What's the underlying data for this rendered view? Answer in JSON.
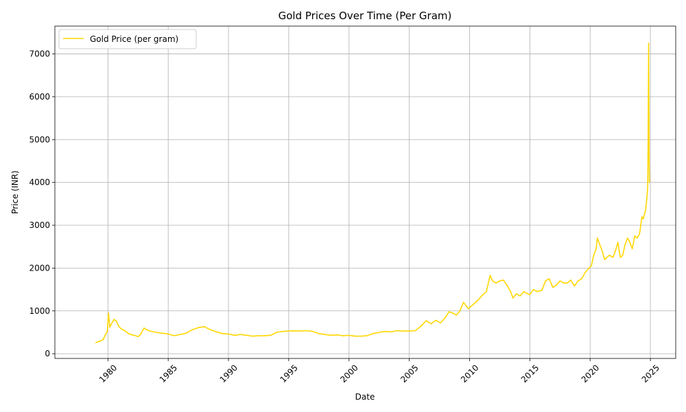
{
  "chart_data": {
    "type": "line",
    "title": "Gold Prices Over Time (Per Gram)",
    "xlabel": "Date",
    "ylabel": "Price (INR)",
    "xlim": [
      1975.6,
      2027.1
    ],
    "ylim": [
      -110,
      7650
    ],
    "x_ticks": [
      1980,
      1985,
      1990,
      1995,
      2000,
      2005,
      2010,
      2015,
      2020,
      2025
    ],
    "y_ticks": [
      0,
      1000,
      2000,
      3000,
      4000,
      5000,
      6000,
      7000
    ],
    "grid": true,
    "legend_position": "top-left",
    "series": [
      {
        "name": "Gold Price (per gram)",
        "color": "#FFD700",
        "x": [
          1979.0,
          1979.3,
          1979.6,
          1979.8,
          1979.95,
          1980.05,
          1980.15,
          1980.3,
          1980.5,
          1980.7,
          1980.9,
          1981.1,
          1981.4,
          1981.7,
          1982.0,
          1982.3,
          1982.5,
          1982.7,
          1983.0,
          1983.2,
          1983.5,
          1984.0,
          1984.5,
          1985.0,
          1985.5,
          1986.0,
          1986.5,
          1987.0,
          1987.5,
          1988.0,
          1988.5,
          1989.0,
          1989.5,
          1990.0,
          1990.5,
          1991.0,
          1991.5,
          1992.0,
          1992.5,
          1993.0,
          1993.5,
          1994.0,
          1994.5,
          1995.0,
          1995.5,
          1996.0,
          1996.5,
          1997.0,
          1997.5,
          1998.0,
          1998.5,
          1999.0,
          1999.5,
          2000.0,
          2000.5,
          2001.0,
          2001.5,
          2002.0,
          2002.5,
          2003.0,
          2003.5,
          2004.0,
          2004.5,
          2005.0,
          2005.5,
          2006.0,
          2006.4,
          2006.8,
          2007.2,
          2007.6,
          2008.0,
          2008.3,
          2008.6,
          2008.9,
          2009.2,
          2009.5,
          2009.9,
          2010.3,
          2010.7,
          2011.0,
          2011.4,
          2011.7,
          2011.9,
          2012.2,
          2012.5,
          2012.8,
          2013.1,
          2013.4,
          2013.6,
          2013.9,
          2014.2,
          2014.5,
          2014.8,
          2015.0,
          2015.3,
          2015.6,
          2016.0,
          2016.3,
          2016.6,
          2016.9,
          2017.2,
          2017.5,
          2017.8,
          2018.1,
          2018.4,
          2018.7,
          2019.0,
          2019.3,
          2019.6,
          2019.9,
          2020.1,
          2020.3,
          2020.5,
          2020.6,
          2020.8,
          2021.0,
          2021.2,
          2021.4,
          2021.6,
          2021.9,
          2022.1,
          2022.3,
          2022.5,
          2022.7,
          2022.9,
          2023.1,
          2023.3,
          2023.5,
          2023.7,
          2023.9,
          2024.1,
          2024.3,
          2024.4,
          2024.6,
          2024.7,
          2024.78,
          2024.82,
          2024.85,
          2024.88,
          2024.9,
          2024.92
        ],
        "values": [
          260,
          290,
          330,
          450,
          520,
          950,
          620,
          700,
          800,
          760,
          640,
          580,
          540,
          470,
          440,
          420,
          400,
          450,
          600,
          560,
          530,
          500,
          480,
          460,
          420,
          450,
          480,
          560,
          610,
          630,
          560,
          510,
          470,
          460,
          430,
          450,
          430,
          410,
          420,
          420,
          430,
          500,
          520,
          530,
          535,
          530,
          540,
          520,
          470,
          450,
          430,
          440,
          420,
          430,
          410,
          410,
          420,
          470,
          500,
          520,
          510,
          540,
          530,
          530,
          540,
          650,
          770,
          700,
          780,
          720,
          850,
          980,
          950,
          900,
          1000,
          1200,
          1050,
          1150,
          1250,
          1350,
          1450,
          1830,
          1700,
          1650,
          1700,
          1720,
          1600,
          1450,
          1300,
          1400,
          1350,
          1450,
          1400,
          1380,
          1500,
          1450,
          1480,
          1700,
          1750,
          1550,
          1600,
          1700,
          1650,
          1650,
          1720,
          1580,
          1700,
          1750,
          1900,
          2000,
          2050,
          2300,
          2450,
          2700,
          2550,
          2400,
          2200,
          2250,
          2300,
          2250,
          2400,
          2600,
          2250,
          2300,
          2550,
          2700,
          2600,
          2450,
          2750,
          2700,
          2800,
          3200,
          3150,
          3350,
          3600,
          3900,
          5200,
          7250,
          5500,
          4500,
          4000
        ]
      }
    ]
  }
}
